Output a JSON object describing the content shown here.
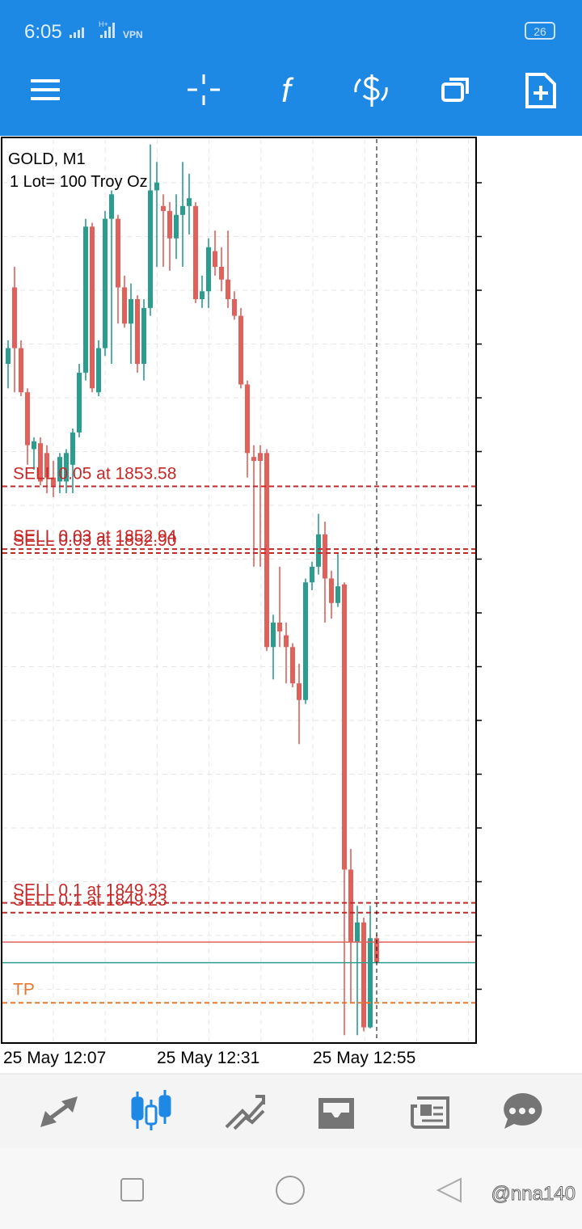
{
  "status_bar": {
    "time": "6:05",
    "signal": "H+",
    "vpn": "VPN",
    "battery": "26"
  },
  "toolbar": {
    "function_icon": "f"
  },
  "chart_data": {
    "type": "candlestick",
    "title": "GOLD, M1",
    "subtitle": "1 Lot= 100 Troy Oz",
    "ylim": [
      1847.9,
      1857.14
    ],
    "x_labels": [
      "25 May 12:07",
      "25 May 12:31",
      "25 May 12:55"
    ],
    "colors": {
      "up": "#2a9d8f",
      "down": "#e0605a",
      "order": "#c62828",
      "tp": "#e8772e",
      "bid": "#e0605a",
      "ask": "#2a9d8f"
    },
    "grid": true,
    "open": [
      1854.83,
      1855.61,
      1854.99,
      1854.54,
      1853.96,
      1854.02,
      1853.92,
      1853.67,
      1853.63,
      1853.63,
      1853.8,
      1854.13,
      1854.74,
      1856.23,
      1854.54,
      1854.99,
      1856.31,
      1856.31,
      1855.61,
      1855.24,
      1855.49,
      1854.83,
      1855.4,
      1856.6,
      1856.44,
      1856.39,
      1856.11,
      1856.35,
      1856.44,
      1856.44,
      1855.49,
      1855.57,
      1855.98,
      1855.82,
      1855.69,
      1855.49,
      1855.32,
      1854.62,
      1853.88,
      1853.92,
      1853.92,
      1851.94,
      1852.19,
      1852.06,
      1851.94,
      1851.57,
      1851.4,
      1852.6,
      1852.76,
      1853.09,
      1852.64,
      1852.39,
      1852.58,
      1849.67,
      1848.93,
      1849.13,
      1848.06,
      1848.97
    ],
    "high": [
      1855.07,
      1855.82,
      1855.07,
      1854.58,
      1854.08,
      1854.08,
      1854.0,
      1853.84,
      1853.92,
      1853.96,
      1854.17,
      1854.83,
      1856.31,
      1856.27,
      1855.07,
      1856.39,
      1856.6,
      1856.35,
      1855.73,
      1855.65,
      1855.53,
      1855.49,
      1857.07,
      1856.89,
      1856.56,
      1856.48,
      1856.56,
      1856.89,
      1856.77,
      1856.48,
      1855.73,
      1856.11,
      1856.19,
      1856.02,
      1856.19,
      1855.57,
      1855.4,
      1854.66,
      1854.0,
      1854.0,
      1853.96,
      1852.27,
      1852.76,
      1852.19,
      1851.98,
      1851.77,
      1852.64,
      1852.81,
      1853.3,
      1853.22,
      1852.72,
      1852.89,
      1852.6,
      1849.88,
      1849.3,
      1849.18,
      1849.3,
      1849.01
    ],
    "low": [
      1854.58,
      1854.54,
      1854.5,
      1853.8,
      1853.75,
      1853.59,
      1853.51,
      1853.47,
      1853.51,
      1853.51,
      1853.51,
      1854.08,
      1854.66,
      1854.54,
      1854.5,
      1854.91,
      1854.83,
      1855.24,
      1855.2,
      1854.83,
      1854.74,
      1854.66,
      1855.32,
      1855.82,
      1855.82,
      1855.78,
      1855.9,
      1855.82,
      1856.15,
      1855.45,
      1855.4,
      1855.4,
      1855.73,
      1855.57,
      1855.4,
      1855.28,
      1854.58,
      1853.67,
      1852.76,
      1852.76,
      1851.9,
      1851.61,
      1851.94,
      1851.57,
      1851.53,
      1850.95,
      1851.36,
      1852.52,
      1852.68,
      1852.19,
      1852.23,
      1852.35,
      1847.98,
      1848.31,
      1847.98,
      1848.02,
      1848.05,
      1848.71
    ],
    "close": [
      1854.99,
      1854.99,
      1854.54,
      1854.0,
      1854.04,
      1853.63,
      1853.67,
      1853.59,
      1853.88,
      1853.92,
      1854.13,
      1854.74,
      1856.23,
      1854.58,
      1854.99,
      1856.31,
      1856.56,
      1855.61,
      1855.24,
      1855.49,
      1854.83,
      1855.4,
      1856.6,
      1856.68,
      1856.39,
      1856.11,
      1856.35,
      1856.44,
      1856.52,
      1855.49,
      1855.57,
      1856.02,
      1855.82,
      1855.69,
      1855.49,
      1855.32,
      1854.62,
      1853.92,
      1853.84,
      1853.84,
      1851.94,
      1852.19,
      1852.1,
      1851.94,
      1851.57,
      1851.4,
      1852.6,
      1852.76,
      1853.09,
      1852.64,
      1852.39,
      1852.56,
      1849.67,
      1848.93,
      1849.13,
      1848.06,
      1848.97,
      1848.72
    ],
    "order_lines": [
      {
        "label": "SELL 0.05 at 1853.58",
        "price": 1853.58
      },
      {
        "label": "SELL 0.03 at 1852.94",
        "price": 1852.94
      },
      {
        "label": "SELL 0.03 at 1852.90",
        "price": 1852.9
      },
      {
        "label": "SELL 0.1 at 1849.33",
        "price": 1849.33
      },
      {
        "label": "SELL 0.1 at 1849.23",
        "price": 1849.23
      }
    ],
    "tp_line": {
      "label": "TP",
      "price": 1848.31
    },
    "bid": 1848.93,
    "ask": 1848.72
  },
  "watermark": "@nna140"
}
